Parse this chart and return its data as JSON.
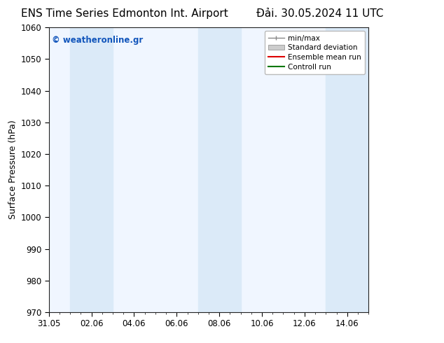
{
  "title_left": "ENS Time Series Edmonton Int. Airport",
  "title_right": "Đải. 30.05.2024 11 UTC",
  "ylabel": "Surface Pressure (hPa)",
  "ylim": [
    970,
    1060
  ],
  "yticks": [
    970,
    980,
    990,
    1000,
    1010,
    1020,
    1030,
    1040,
    1050,
    1060
  ],
  "xtick_labels": [
    "31.05",
    "02.06",
    "04.06",
    "06.06",
    "08.06",
    "10.06",
    "12.06",
    "14.06"
  ],
  "xtick_positions": [
    0,
    2,
    4,
    6,
    8,
    10,
    12,
    14
  ],
  "xlim": [
    0,
    15
  ],
  "watermark": "© weatheronline.gr",
  "watermark_color": "#1155bb",
  "bg_color": "#ffffff",
  "plot_bg_color": "#f0f6ff",
  "shaded_bands": [
    {
      "x_start": 1,
      "x_end": 3,
      "color": "#dbeaf8"
    },
    {
      "x_start": 7,
      "x_end": 9,
      "color": "#dbeaf8"
    },
    {
      "x_start": 13,
      "x_end": 15,
      "color": "#dbeaf8"
    }
  ],
  "title_fontsize": 11,
  "tick_fontsize": 8.5,
  "label_fontsize": 9,
  "watermark_fontsize": 8.5
}
